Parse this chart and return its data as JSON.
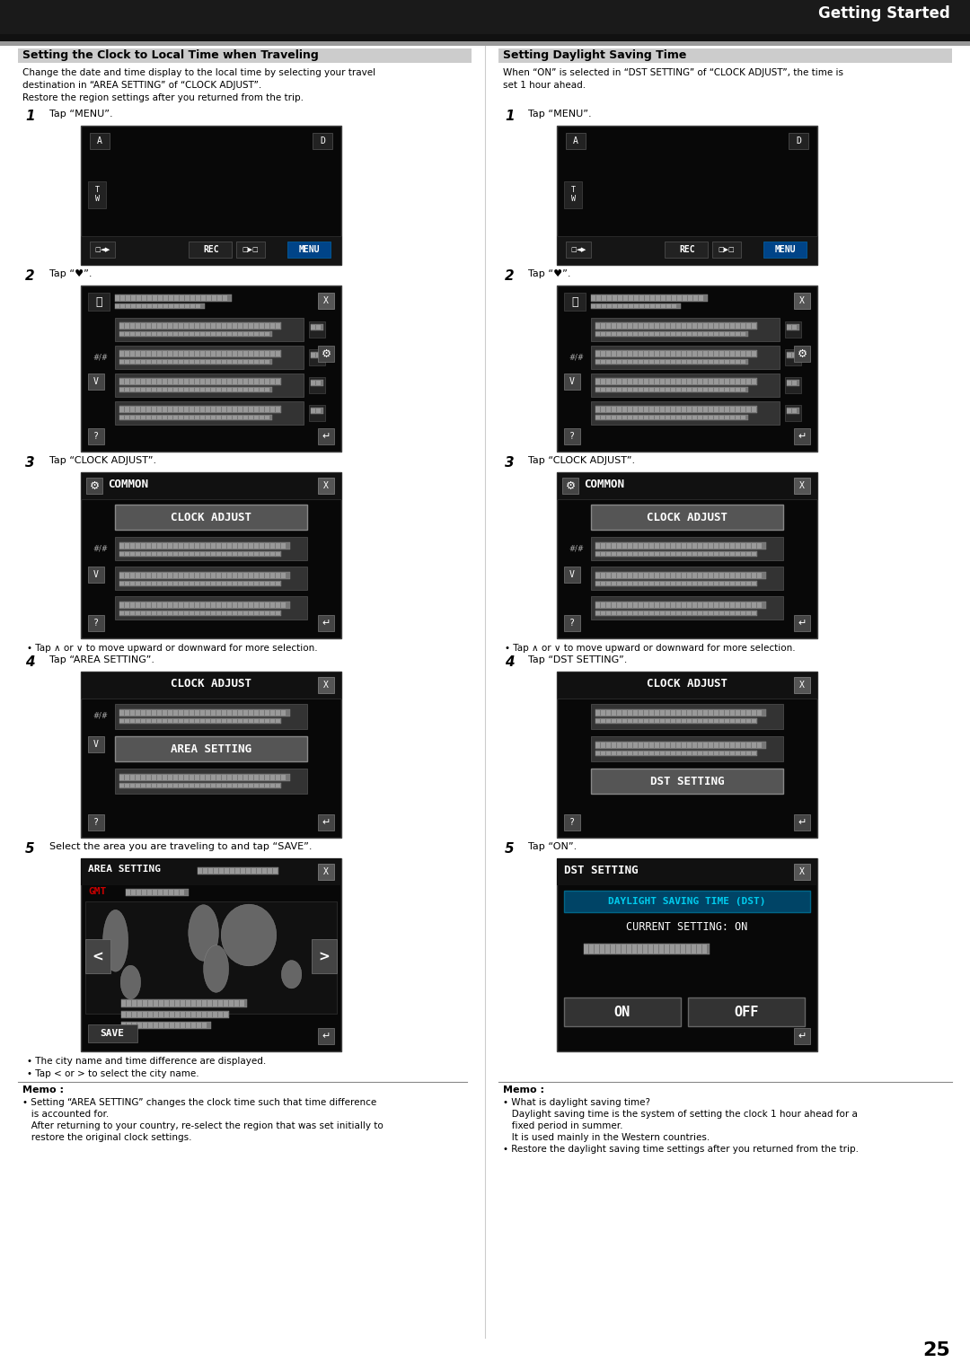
{
  "page_num": "25",
  "header_right": "Getting Started",
  "left_section_title": "Setting the Clock to Local Time when Traveling",
  "right_section_title": "Setting Daylight Saving Time",
  "left_intro": [
    "Change the date and time display to the local time by selecting your travel",
    "destination in “AREA SETTING” of “CLOCK ADJUST”.",
    "Restore the region settings after you returned from the trip."
  ],
  "right_intro": [
    "When “ON” is selected in “DST SETTING” of “CLOCK ADJUST”, the time is",
    "set 1 hour ahead."
  ],
  "step_tap_menu": "Tap “MENU”.",
  "step_tap_gear": "Tap “♥”.",
  "step_tap_clock": "Tap “CLOCK ADJUST”.",
  "step_tap_area": "Tap “AREA SETTING”.",
  "step_tap_save": "Select the area you are traveling to and tap “SAVE”.",
  "step_tap_dst": "Tap “DST SETTING”.",
  "step_tap_on": "Tap “ON”.",
  "bullet_step3": "• Tap ∧ or ∨ to move upward or downward for more selection.",
  "bullet_area5a": "• The city name and time difference are displayed.",
  "bullet_area5b": "• Tap < or > to select the city name.",
  "left_memo_title": "Memo :",
  "left_memo_lines": [
    "• Setting “AREA SETTING” changes the clock time such that time difference",
    "   is accounted for.",
    "   After returning to your country, re-select the region that was set initially to",
    "   restore the original clock settings."
  ],
  "right_memo_title": "Memo :",
  "right_memo_lines": [
    "• What is daylight saving time?",
    "   Daylight saving time is the system of setting the clock 1 hour ahead for a",
    "   fixed period in summer.",
    "   It is used mainly in the Western countries.",
    "• Restore the daylight saving time settings after you returned from the trip."
  ]
}
